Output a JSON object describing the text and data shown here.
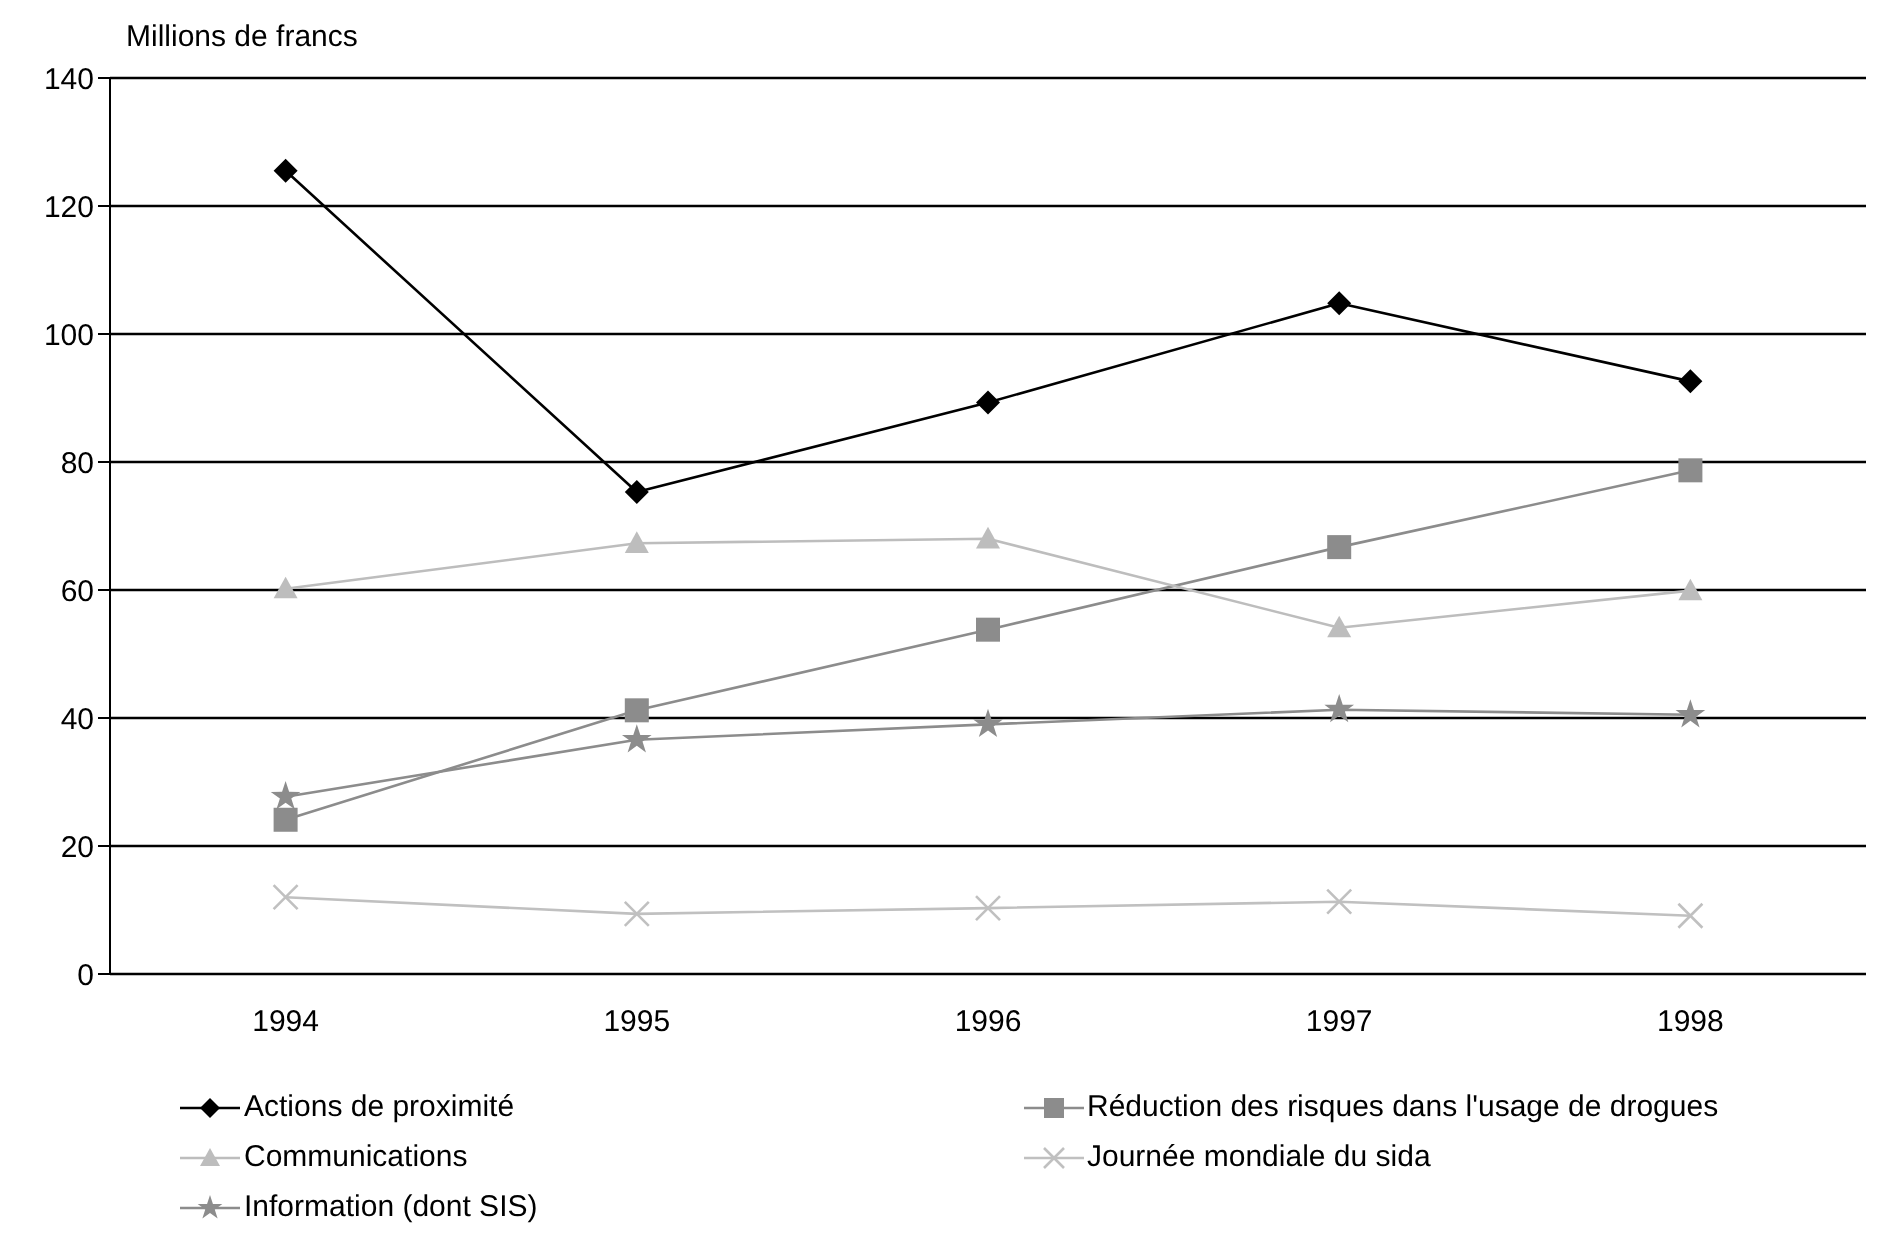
{
  "chart_data": {
    "type": "line",
    "ylabel": "Millions de francs",
    "categories": [
      "1994",
      "1995",
      "1996",
      "1997",
      "1998"
    ],
    "series": [
      {
        "name": "Actions de proximité",
        "color": "#000000",
        "marker": "diamond",
        "values": [
          125.5,
          75.3,
          89.3,
          104.8,
          92.6
        ]
      },
      {
        "name": "Réduction des risques dans l'usage de drogues",
        "color": "#8c8c8c",
        "marker": "square",
        "values": [
          24.1,
          41.2,
          53.8,
          66.7,
          78.7
        ]
      },
      {
        "name": "Communications",
        "color": "#bdbdbd",
        "marker": "triangle",
        "values": [
          60.2,
          67.3,
          68.0,
          54.1,
          59.9
        ]
      },
      {
        "name": "Journée mondiale du sida",
        "color": "#c0c0c0",
        "marker": "cross",
        "values": [
          12.0,
          9.4,
          10.3,
          11.3,
          9.1
        ]
      },
      {
        "name": "Information (dont SIS)",
        "color": "#8c8c8c",
        "marker": "star",
        "values": [
          27.7,
          36.6,
          39.0,
          41.3,
          40.5
        ]
      }
    ],
    "ylim": [
      0,
      140
    ],
    "yticks": [
      0,
      20,
      40,
      60,
      80,
      100,
      120,
      140
    ],
    "grid": "y",
    "legend": "bottom",
    "line_style": "solid"
  }
}
